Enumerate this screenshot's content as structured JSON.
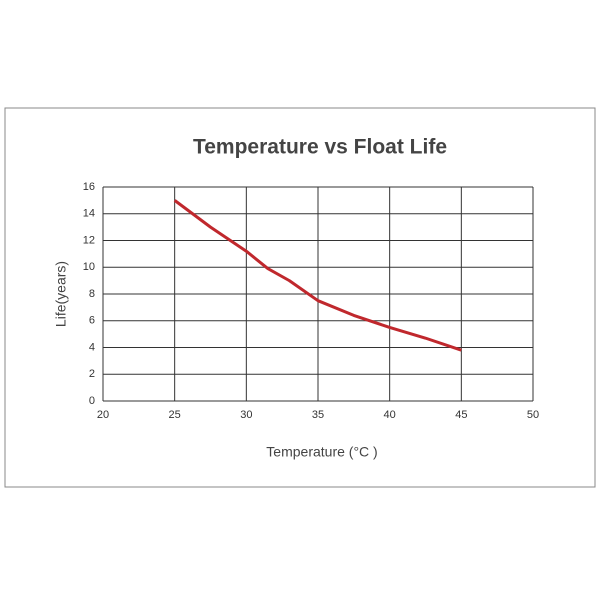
{
  "chart_data": {
    "type": "line",
    "title": "Temperature vs Float Life",
    "x_label": "Temperature (°C )",
    "y_label": "Life(years)",
    "series": [
      {
        "color": "#c0282d",
        "x": [
          25,
          27.5,
          30,
          31.5,
          33,
          35,
          37.5,
          40,
          42.5,
          45
        ],
        "values": [
          15,
          13,
          11.2,
          9.9,
          9,
          7.5,
          6.4,
          5.5,
          4.7,
          3.8
        ]
      }
    ],
    "xlim": [
      20,
      50
    ],
    "xticks": [
      20,
      25,
      30,
      35,
      40,
      45,
      50
    ],
    "ylim": [
      0,
      16
    ],
    "yticks": [
      0,
      2,
      4,
      6,
      8,
      10,
      12,
      14,
      16
    ],
    "grid": true
  }
}
